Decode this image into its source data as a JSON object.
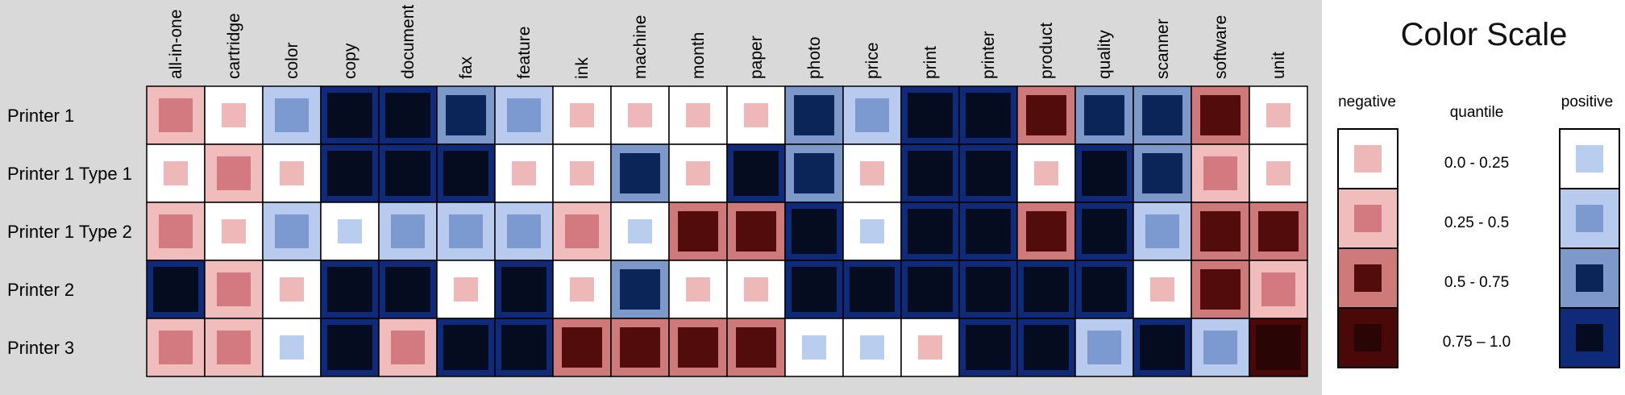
{
  "colors": {
    "negative": [
      "#ffffff",
      "#f0bcbc",
      "#cf7a7a",
      "#4a0808"
    ],
    "positive": [
      "#ffffff",
      "#b8cbee",
      "#7c99c9",
      "#0f2a79"
    ],
    "marker_negative": [
      "#efb8b8",
      "#d27a80",
      "#520c0c",
      "#2a0505"
    ],
    "marker_positive": [
      "#b9cdef",
      "#7c9ad0",
      "#0c2558",
      "#050c20"
    ],
    "panel_background": "#d9d9d9",
    "cell_border": "#000000"
  },
  "chart_data": {
    "type": "heatmap",
    "encoding": "each cell shows a sentiment polarity (negative / positive) and a quantile level 1-4; the background and the inner square are both coloured by the same level, the square grows with the level",
    "rows": [
      "Printer 1",
      "Printer 1 Type 1",
      "Printer 1 Type 2",
      "Printer 2",
      "Printer 3"
    ],
    "columns": [
      "all-in-one",
      "cartridge",
      "color",
      "copy",
      "document",
      "fax",
      "feature",
      "ink",
      "machine",
      "month",
      "paper",
      "photo",
      "price",
      "print",
      "printer",
      "product",
      "quality",
      "scanner",
      "software",
      "unit"
    ],
    "cells": [
      [
        [
          "neg",
          2
        ],
        [
          "neg",
          1
        ],
        [
          "pos",
          2
        ],
        [
          "pos",
          4
        ],
        [
          "pos",
          4
        ],
        [
          "pos",
          3
        ],
        [
          "pos",
          2
        ],
        [
          "neg",
          1
        ],
        [
          "neg",
          1
        ],
        [
          "neg",
          1
        ],
        [
          "neg",
          1
        ],
        [
          "pos",
          3
        ],
        [
          "pos",
          2
        ],
        [
          "pos",
          4
        ],
        [
          "pos",
          4
        ],
        [
          "neg",
          3
        ],
        [
          "pos",
          3
        ],
        [
          "pos",
          3
        ],
        [
          "neg",
          3
        ],
        [
          "neg",
          1
        ]
      ],
      [
        [
          "neg",
          1
        ],
        [
          "neg",
          2
        ],
        [
          "neg",
          1
        ],
        [
          "pos",
          4
        ],
        [
          "pos",
          4
        ],
        [
          "pos",
          4
        ],
        [
          "neg",
          1
        ],
        [
          "neg",
          1
        ],
        [
          "pos",
          3
        ],
        [
          "neg",
          1
        ],
        [
          "pos",
          4
        ],
        [
          "pos",
          3
        ],
        [
          "neg",
          1
        ],
        [
          "pos",
          4
        ],
        [
          "pos",
          4
        ],
        [
          "neg",
          1
        ],
        [
          "pos",
          4
        ],
        [
          "pos",
          3
        ],
        [
          "neg",
          2
        ],
        [
          "neg",
          1
        ]
      ],
      [
        [
          "neg",
          2
        ],
        [
          "neg",
          1
        ],
        [
          "pos",
          2
        ],
        [
          "pos",
          1
        ],
        [
          "pos",
          2
        ],
        [
          "pos",
          2
        ],
        [
          "pos",
          2
        ],
        [
          "neg",
          2
        ],
        [
          "pos",
          1
        ],
        [
          "neg",
          3
        ],
        [
          "neg",
          3
        ],
        [
          "pos",
          4
        ],
        [
          "pos",
          1
        ],
        [
          "pos",
          4
        ],
        [
          "pos",
          4
        ],
        [
          "neg",
          3
        ],
        [
          "pos",
          4
        ],
        [
          "pos",
          2
        ],
        [
          "neg",
          3
        ],
        [
          "neg",
          3
        ]
      ],
      [
        [
          "pos",
          4
        ],
        [
          "neg",
          2
        ],
        [
          "neg",
          1
        ],
        [
          "pos",
          4
        ],
        [
          "pos",
          4
        ],
        [
          "neg",
          1
        ],
        [
          "pos",
          4
        ],
        [
          "neg",
          1
        ],
        [
          "pos",
          3
        ],
        [
          "neg",
          1
        ],
        [
          "neg",
          1
        ],
        [
          "pos",
          4
        ],
        [
          "pos",
          4
        ],
        [
          "pos",
          4
        ],
        [
          "pos",
          4
        ],
        [
          "pos",
          4
        ],
        [
          "pos",
          4
        ],
        [
          "neg",
          1
        ],
        [
          "neg",
          3
        ],
        [
          "neg",
          2
        ]
      ],
      [
        [
          "neg",
          2
        ],
        [
          "neg",
          2
        ],
        [
          "pos",
          1
        ],
        [
          "pos",
          4
        ],
        [
          "neg",
          2
        ],
        [
          "pos",
          4
        ],
        [
          "pos",
          4
        ],
        [
          "neg",
          3
        ],
        [
          "neg",
          3
        ],
        [
          "neg",
          3
        ],
        [
          "neg",
          3
        ],
        [
          "pos",
          1
        ],
        [
          "pos",
          1
        ],
        [
          "neg",
          1
        ],
        [
          "pos",
          4
        ],
        [
          "pos",
          4
        ],
        [
          "pos",
          2
        ],
        [
          "pos",
          4
        ],
        [
          "pos",
          2
        ],
        [
          "neg",
          4
        ]
      ]
    ]
  },
  "legend": {
    "title": "Color Scale",
    "negative_label": "negative",
    "quantile_label": "quantile",
    "positive_label": "positive",
    "ranges": [
      "0.0 - 0.25",
      "0.25 - 0.5",
      "0.5 - 0.75",
      "0.75 – 1.0"
    ]
  }
}
